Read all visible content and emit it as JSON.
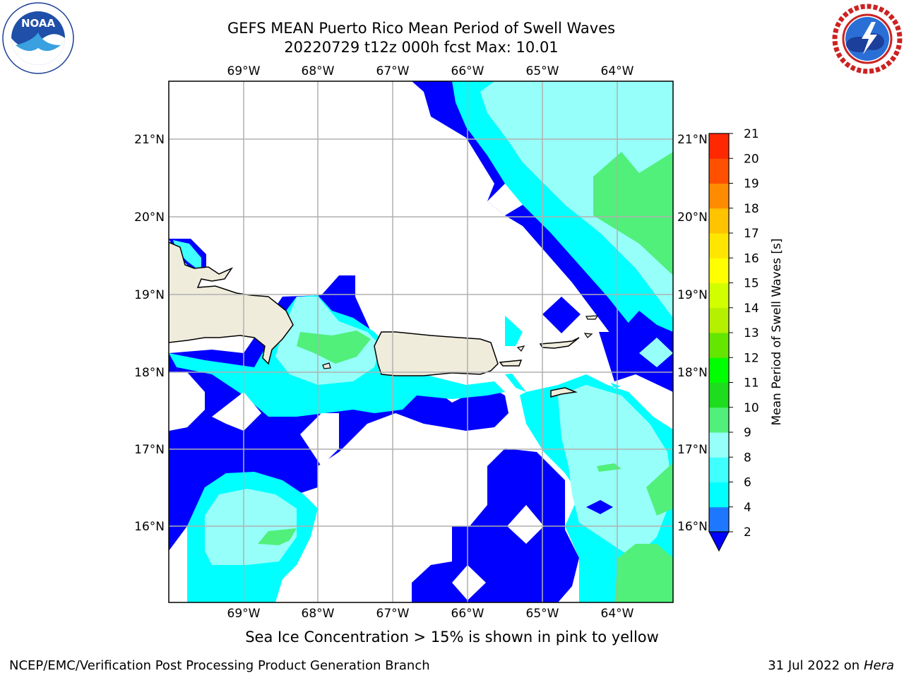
{
  "header": {
    "title_line1": "GEFS MEAN Puerto Rico Mean Period of Swell Waves",
    "title_line2": "20220729 t12z 000h fcst   Max: 10.01"
  },
  "map": {
    "lon_labels": [
      "69°W",
      "68°W",
      "67°W",
      "66°W",
      "65°W",
      "64°W"
    ],
    "lat_labels": [
      "21°N",
      "20°N",
      "19°N",
      "18°N",
      "17°N",
      "16°N"
    ],
    "land_color": "#efecdc",
    "grid_color": "#b0b0b0"
  },
  "colorbar": {
    "label": "Mean Period of Swell Waves [s]",
    "ticks": [
      "2",
      "4",
      "6",
      "8",
      "9",
      "10",
      "11",
      "12",
      "13",
      "14",
      "15",
      "16",
      "17",
      "18",
      "19",
      "20",
      "21"
    ],
    "colors": [
      "#0000ff",
      "#1e78ff",
      "#00ffff",
      "#40ffff",
      "#96fffa",
      "#50f07a",
      "#1edc1e",
      "#00ff00",
      "#64e600",
      "#b4f000",
      "#d2ff00",
      "#ffff00",
      "#ffe600",
      "#ffc300",
      "#ff8c00",
      "#ff5000",
      "#ff2800",
      "#ff0000"
    ]
  },
  "caption": "Sea Ice Concentration > 15% is shown in pink to yellow",
  "footer": {
    "left": "NCEP/EMC/Verification Post Processing Product Generation Branch",
    "date": "31 Jul 2022 on ",
    "host": "Hera"
  },
  "logos": {
    "left": "noaa-logo",
    "right": "national-weather-service-logo"
  }
}
